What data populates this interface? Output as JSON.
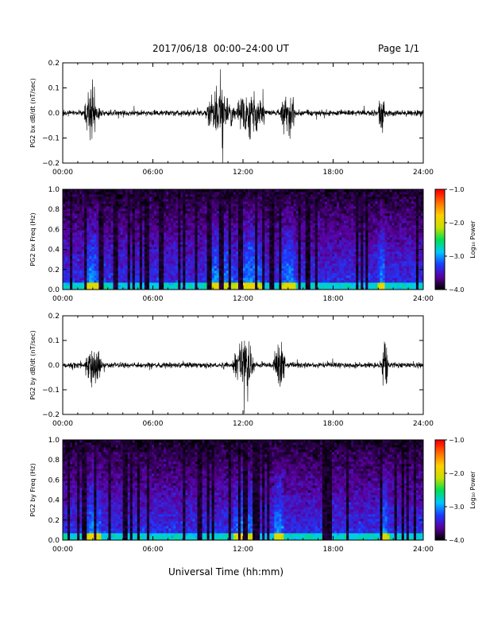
{
  "header": {
    "title": "2017/06/18  00:00–24:00 UT",
    "page": "Page 1/1"
  },
  "xlabel": "Universal Time (hh:mm)",
  "colorbar": {
    "label": "Log₁₀ Power",
    "ticks": [
      "−1.0",
      "−2.0",
      "−3.0",
      "−4.0"
    ],
    "range": [
      -4.0,
      -1.0
    ],
    "colors": [
      "#000000",
      "#5b009e",
      "#1a3cff",
      "#00c8ff",
      "#00e050",
      "#c8e000",
      "#ffd000",
      "#ff7000",
      "#ff0000"
    ]
  },
  "chart_data": [
    {
      "type": "line",
      "ylabel": "PG2 bx dB/dt (nT/sec)",
      "ylim": [
        -0.2,
        0.2
      ],
      "y_ticks": [
        "0.2",
        "0.1",
        "0.0",
        "−0.1",
        "−0.2"
      ],
      "x_ticks": [
        "00:00",
        "06:00",
        "12:00",
        "18:00",
        "24:00"
      ],
      "xlim_hours": [
        0,
        24
      ],
      "bursts_hours": [
        [
          1.4,
          2.5
        ],
        [
          9.5,
          11.5
        ],
        [
          11.5,
          13.5
        ],
        [
          14.5,
          15.5
        ],
        [
          21.0,
          21.5
        ]
      ]
    },
    {
      "type": "heatmap",
      "ylabel": "PG2 bx Freq (Hz)",
      "ylim": [
        0.0,
        1.0
      ],
      "y_ticks": [
        "1.0",
        "0.8",
        "0.6",
        "0.4",
        "0.2",
        "0.0"
      ],
      "x_ticks": [
        "00:00",
        "06:00",
        "12:00",
        "18:00",
        "24:00"
      ],
      "xlim_hours": [
        0,
        24
      ],
      "zlim": [
        -4.0,
        -1.0
      ]
    },
    {
      "type": "line",
      "ylabel": "PG2 by dB/dt (nT/sec)",
      "ylim": [
        -0.2,
        0.2
      ],
      "y_ticks": [
        "0.2",
        "0.1",
        "0.0",
        "−0.1",
        "−0.2"
      ],
      "x_ticks": [
        "00:00",
        "06:00",
        "12:00",
        "18:00",
        "24:00"
      ],
      "xlim_hours": [
        0,
        24
      ],
      "bursts_hours": [
        [
          1.5,
          2.6
        ],
        [
          11.3,
          12.8
        ],
        [
          14.0,
          14.8
        ],
        [
          21.2,
          21.7
        ]
      ]
    },
    {
      "type": "heatmap",
      "ylabel": "PG2 by Freq (Hz)",
      "ylim": [
        0.0,
        1.0
      ],
      "y_ticks": [
        "1.0",
        "0.8",
        "0.6",
        "0.4",
        "0.2",
        "0.0"
      ],
      "x_ticks": [
        "00:00",
        "06:00",
        "12:00",
        "18:00",
        "24:00"
      ],
      "xlim_hours": [
        0,
        24
      ],
      "zlim": [
        -4.0,
        -1.0
      ]
    }
  ]
}
